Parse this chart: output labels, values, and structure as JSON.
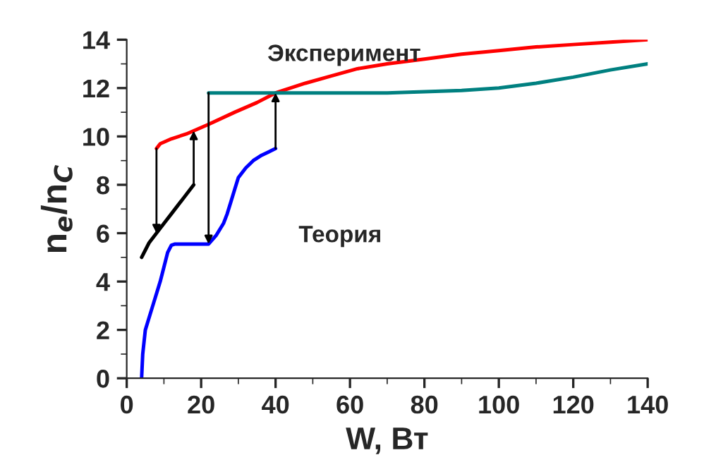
{
  "chart_data": {
    "type": "line",
    "xlabel": "W, Вт",
    "ylabel": "n$_{e}$/n$_{C}$",
    "annotations": [
      "Эксперимент",
      "Теория"
    ],
    "series": [
      {
        "color": "#ff0000",
        "x": [
          8,
          9,
          12,
          16,
          22,
          29,
          35,
          40,
          48,
          55,
          62,
          70,
          80,
          90,
          100,
          110,
          120,
          130,
          140
        ],
        "values": [
          9.5,
          9.7,
          9.9,
          10.1,
          10.5,
          11.0,
          11.4,
          11.8,
          12.2,
          12.5,
          12.8,
          13.0,
          13.2,
          13.4,
          13.55,
          13.7,
          13.8,
          13.9,
          14.0
        ]
      },
      {
        "color": "#008080",
        "x": [
          22,
          40,
          60,
          70,
          80,
          90,
          100,
          110,
          120,
          130,
          140
        ],
        "values": [
          11.8,
          11.8,
          11.8,
          11.8,
          11.85,
          11.9,
          12.0,
          12.2,
          12.45,
          12.75,
          13.0
        ]
      },
      {
        "color": "#0000ff",
        "x": [
          4,
          4.3,
          5,
          6,
          7,
          8,
          9,
          10,
          11,
          12,
          13,
          16,
          20,
          22,
          24,
          26,
          27,
          28,
          29,
          30,
          32,
          34,
          36,
          38,
          40
        ],
        "values": [
          0,
          1.0,
          2.0,
          2.5,
          3.0,
          3.5,
          4.0,
          4.6,
          5.2,
          5.5,
          5.55,
          5.55,
          5.55,
          5.55,
          5.9,
          6.4,
          6.8,
          7.3,
          7.8,
          8.3,
          8.7,
          9.0,
          9.2,
          9.35,
          9.5
        ]
      },
      {
        "color": "#000000",
        "x": [
          4,
          6,
          8,
          10,
          12,
          14,
          16,
          18
        ],
        "values": [
          5.0,
          5.6,
          6.0,
          6.4,
          6.8,
          7.2,
          7.6,
          8.0
        ]
      }
    ],
    "xlim": [
      0,
      140
    ],
    "xticks": [
      0,
      20,
      40,
      60,
      80,
      100,
      120,
      140
    ],
    "ylim": [
      0,
      14
    ],
    "yticks": [
      0,
      2,
      4,
      6,
      8,
      10,
      12,
      14
    ],
    "grid": false,
    "legend": false,
    "marker": "none",
    "line_style": "solid"
  }
}
